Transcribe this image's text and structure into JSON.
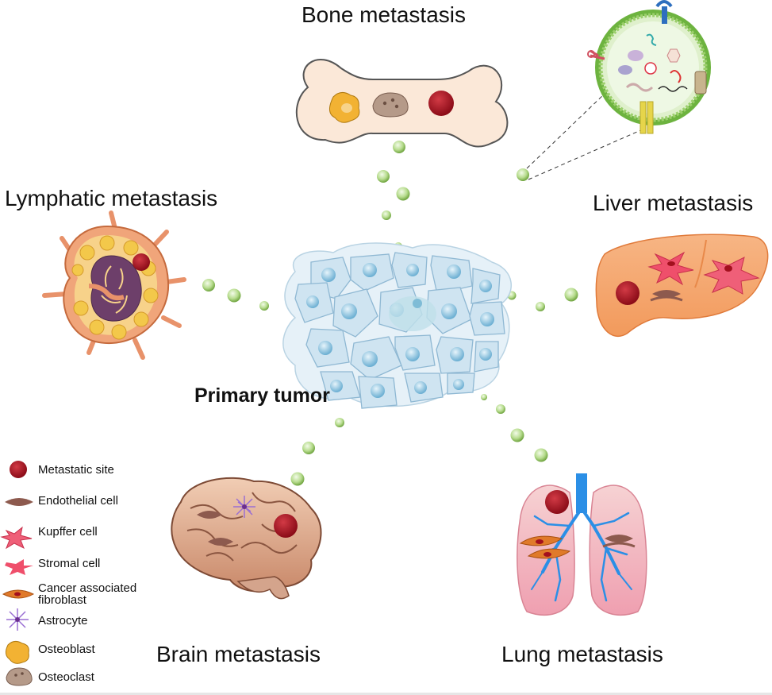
{
  "center": {
    "label": "Primary tumor"
  },
  "sites": {
    "bone": "Bone metastasis",
    "lymphatic": "Lymphatic metastasis",
    "liver": "Liver metastasis",
    "brain": "Brain metastasis",
    "lung": "Lung metastasis"
  },
  "legend": {
    "items": [
      {
        "label": "Metastatic site",
        "icon": "metastatic-site-icon"
      },
      {
        "label": "Endothelial cell",
        "icon": "endothelial-cell-icon"
      },
      {
        "label": "Kupffer cell",
        "icon": "kupffer-cell-icon"
      },
      {
        "label": "Stromal cell",
        "icon": "stromal-cell-icon"
      },
      {
        "label": "Cancer associated fibroblast",
        "icon": "fibroblast-icon"
      },
      {
        "label": "Astrocyte",
        "icon": "astrocyte-icon"
      },
      {
        "label": "Osteoblast",
        "icon": "osteoblast-icon"
      },
      {
        "label": "Osteoclast",
        "icon": "osteoclast-icon"
      }
    ]
  },
  "colors": {
    "metastatic": "#a3101e",
    "vesicle": "#a9d67a",
    "tumor_cell": "#d6e8f2",
    "liver": "#f4a36a",
    "lymph": "#f0a57a",
    "bone": "#fbe8d8",
    "brain": "#d9a58a",
    "lung": "#f2b3b8"
  }
}
